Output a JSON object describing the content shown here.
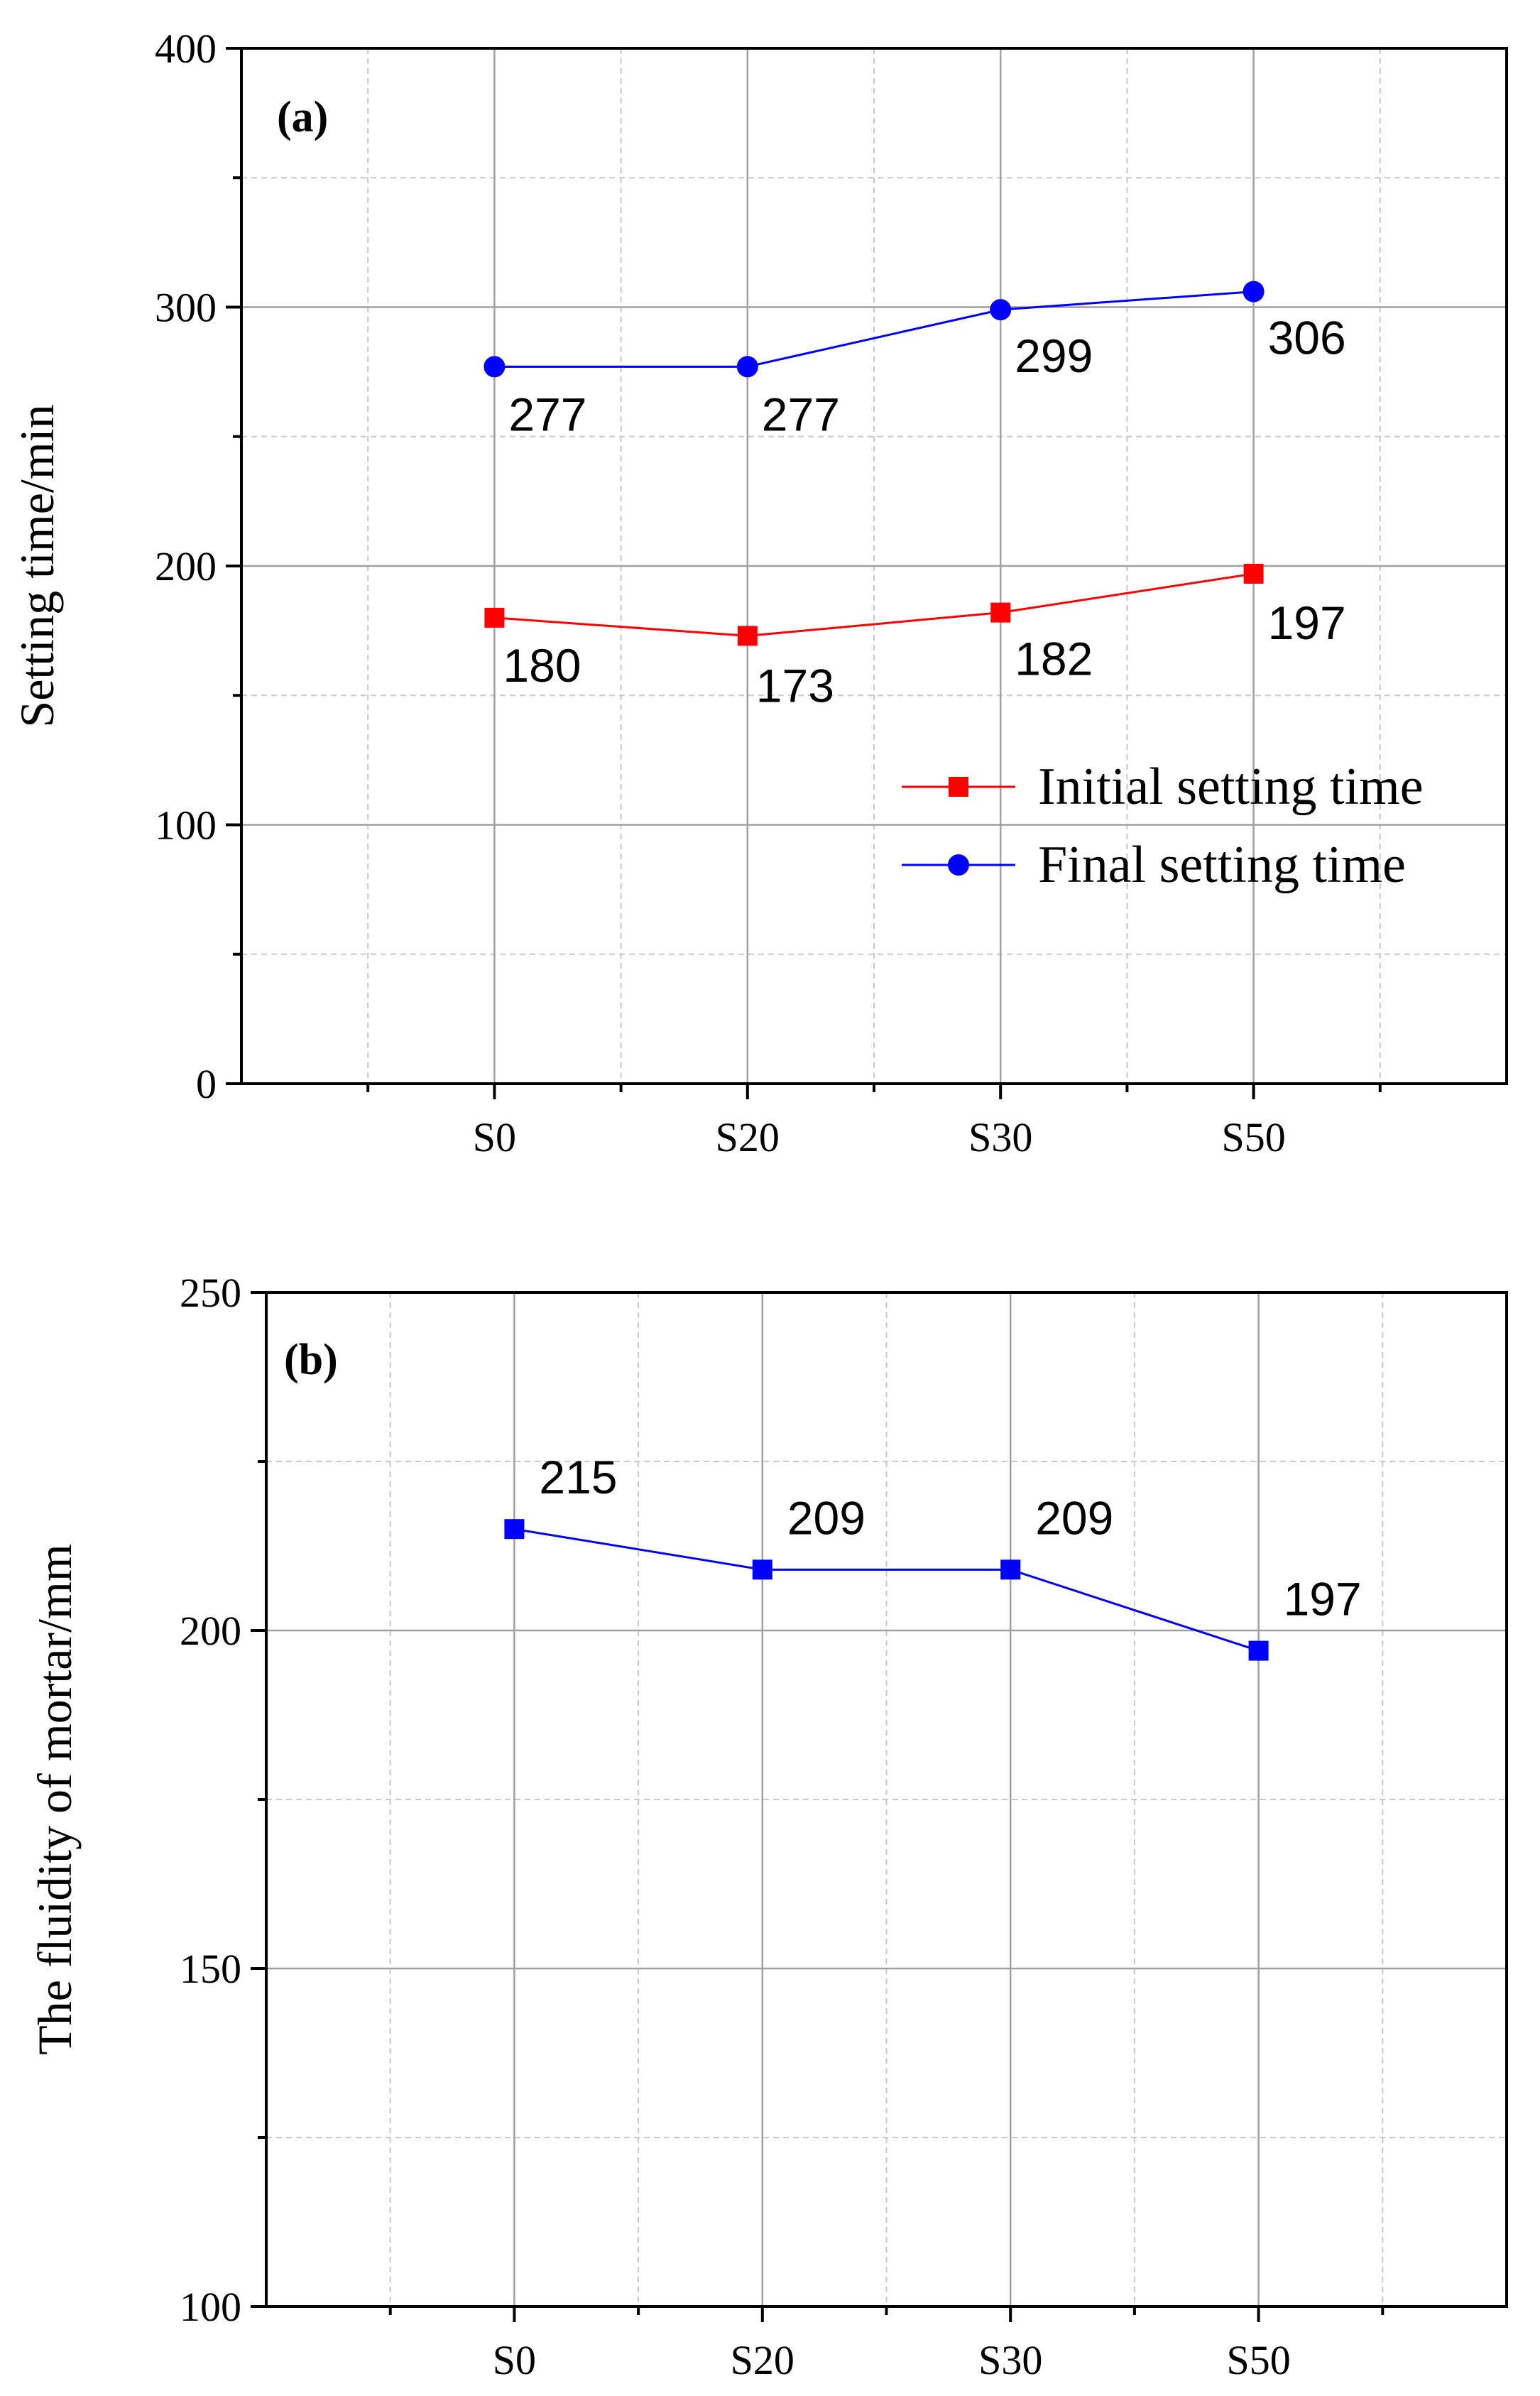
{
  "chart_data": [
    {
      "panel_label": "(a)",
      "type": "line",
      "categories": [
        "S0",
        "S20",
        "S30",
        "S50"
      ],
      "title": "",
      "xlabel": "",
      "ylabel": "Setting time/min",
      "ylim": [
        0,
        400
      ],
      "yticks": [
        0,
        100,
        200,
        300,
        400
      ],
      "grid": true,
      "legend_position": "lower-right",
      "series": [
        {
          "name": "Initial setting time",
          "values": [
            180,
            173,
            182,
            197
          ],
          "color": "#ff0000",
          "marker": "square"
        },
        {
          "name": "Final setting time",
          "values": [
            277,
            277,
            299,
            306
          ],
          "color": "#0000ff",
          "marker": "circle"
        }
      ]
    },
    {
      "panel_label": "(b)",
      "type": "line",
      "categories": [
        "S0",
        "S20",
        "S30",
        "S50"
      ],
      "title": "",
      "xlabel": "",
      "ylabel": "The fluidity of mortar/mm",
      "ylim": [
        100,
        250
      ],
      "yticks": [
        100,
        150,
        200,
        250
      ],
      "grid": true,
      "legend_position": "none",
      "series": [
        {
          "values": [
            215,
            209,
            209,
            197
          ],
          "color": "#0000ff",
          "marker": "square"
        }
      ]
    }
  ]
}
